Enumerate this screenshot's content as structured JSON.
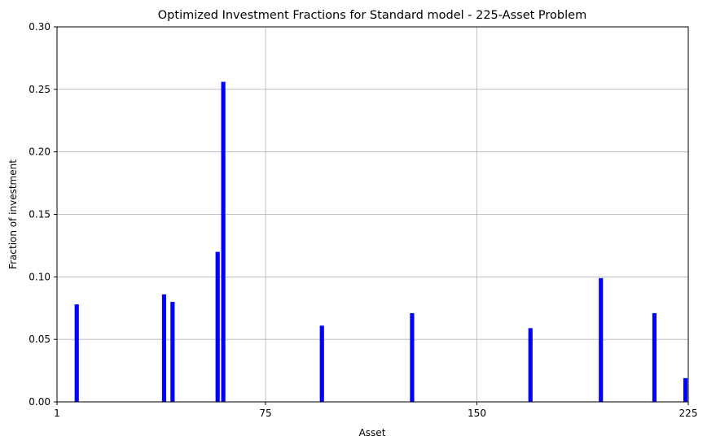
{
  "chart_data": {
    "type": "bar",
    "title": "Optimized Investment Fractions for Standard model - 225-Asset Problem",
    "xlabel": "Asset",
    "ylabel": "Fraction of investment",
    "xlim": [
      1,
      225
    ],
    "ylim": [
      0,
      0.3
    ],
    "xticks": [
      1,
      75,
      150,
      225
    ],
    "xtick_labels": [
      "1",
      "75",
      "150",
      "225"
    ],
    "yticks": [
      0,
      0.05,
      0.1,
      0.15,
      0.2,
      0.25,
      0.3
    ],
    "ytick_labels": [
      "0.00",
      "0.05",
      "0.10",
      "0.15",
      "0.20",
      "0.25",
      "0.30"
    ],
    "grid": true,
    "bar_color": "#0000ff",
    "bars": [
      {
        "asset": 8,
        "value": 0.078
      },
      {
        "asset": 39,
        "value": 0.086
      },
      {
        "asset": 42,
        "value": 0.08
      },
      {
        "asset": 58,
        "value": 0.12
      },
      {
        "asset": 60,
        "value": 0.256
      },
      {
        "asset": 95,
        "value": 0.061
      },
      {
        "asset": 127,
        "value": 0.071
      },
      {
        "asset": 169,
        "value": 0.059
      },
      {
        "asset": 194,
        "value": 0.099
      },
      {
        "asset": 213,
        "value": 0.071
      },
      {
        "asset": 224,
        "value": 0.019
      }
    ]
  }
}
